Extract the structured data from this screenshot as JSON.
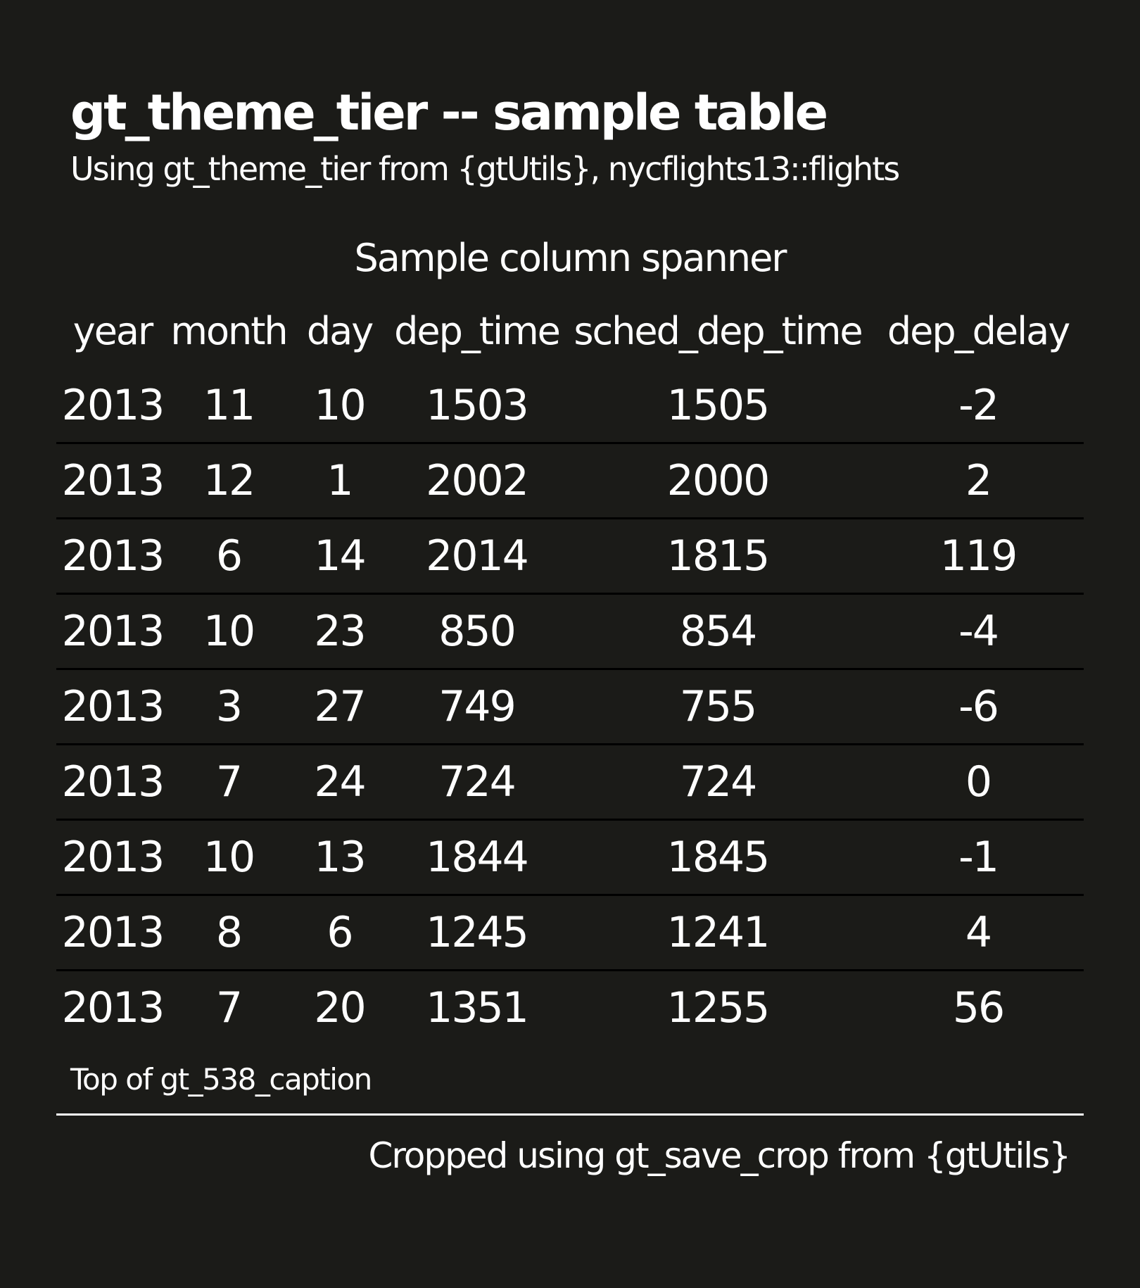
{
  "title": "gt_theme_tier -- sample table",
  "subtitle": "Using gt_theme_tier from {gtUtils}, nycflights13::flights",
  "spanner": "Sample column spanner",
  "columns": [
    "year",
    "month",
    "day",
    "dep_time",
    "sched_dep_time",
    "dep_delay"
  ],
  "rows": [
    [
      "2013",
      "11",
      "10",
      "1503",
      "1505",
      "-2"
    ],
    [
      "2013",
      "12",
      "1",
      "2002",
      "2000",
      "2"
    ],
    [
      "2013",
      "6",
      "14",
      "2014",
      "1815",
      "119"
    ],
    [
      "2013",
      "10",
      "23",
      "850",
      "854",
      "-4"
    ],
    [
      "2013",
      "3",
      "27",
      "749",
      "755",
      "-6"
    ],
    [
      "2013",
      "7",
      "24",
      "724",
      "724",
      "0"
    ],
    [
      "2013",
      "10",
      "13",
      "1844",
      "1845",
      "-1"
    ],
    [
      "2013",
      "8",
      "6",
      "1245",
      "1241",
      "4"
    ],
    [
      "2013",
      "7",
      "20",
      "1351",
      "1255",
      "56"
    ]
  ],
  "caption": "Top of gt_538_caption",
  "footer": "Cropped using gt_save_crop from {gtUtils}",
  "colors": {
    "background": "#1b1b18",
    "text": "#ffffff",
    "row_divider": "#000000",
    "caption_rule": "#ffffff"
  }
}
